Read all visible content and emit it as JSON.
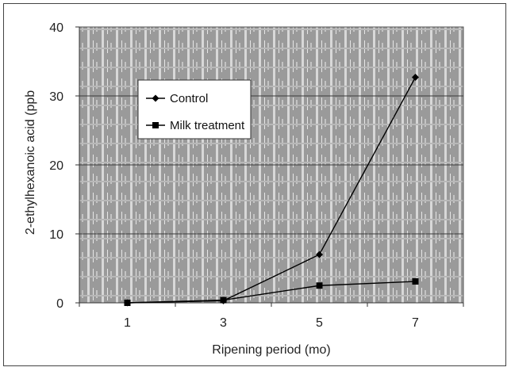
{
  "chart_data": {
    "type": "line",
    "x": [
      1,
      3,
      5,
      7
    ],
    "series": [
      {
        "name": "Control",
        "values": [
          0,
          0.3,
          7,
          32.7
        ],
        "marker": "diamond",
        "color": "#000000"
      },
      {
        "name": "Milk treatment",
        "values": [
          0,
          0.4,
          2.5,
          3.1
        ],
        "marker": "square",
        "color": "#000000"
      }
    ],
    "xlabel": "Ripening period (mo)",
    "ylabel": "2-ethylhexanoic acid (ppb",
    "xticks": [
      "1",
      "3",
      "5",
      "7"
    ],
    "yticks": [
      "0",
      "10",
      "20",
      "30",
      "40"
    ],
    "ylim": [
      0,
      40
    ],
    "grid": true,
    "legend": "upper-left",
    "plot_background": "#9a9a9a"
  }
}
